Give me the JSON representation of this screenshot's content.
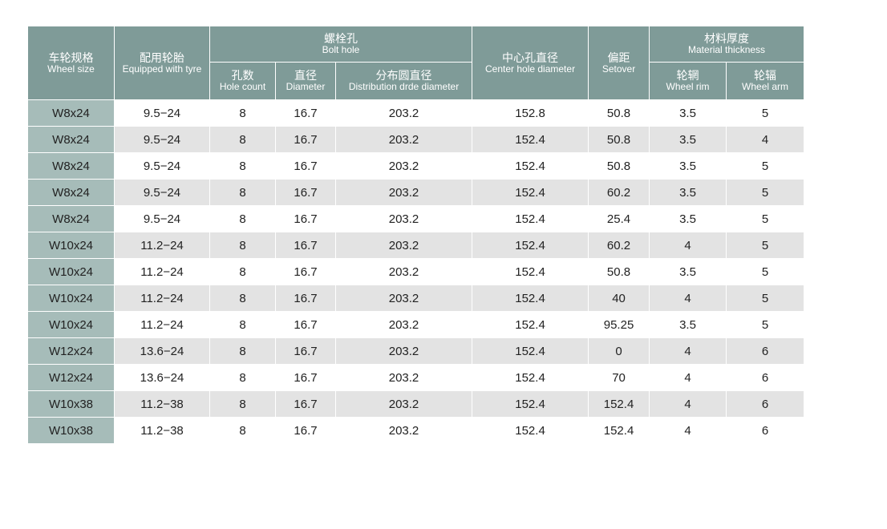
{
  "headers": {
    "wheel_size": {
      "zh": "车轮规格",
      "en": "Wheel size"
    },
    "tyre": {
      "zh": "配用轮胎",
      "en": "Equipped with tyre"
    },
    "bolt_hole": {
      "zh": "螺栓孔",
      "en": "Bolt hole"
    },
    "hole_count": {
      "zh": "孔数",
      "en": "Hole count"
    },
    "diameter": {
      "zh": "直径",
      "en": "Diameter"
    },
    "distribution": {
      "zh": "分布圆直径",
      "en": "Distribution drde diameter"
    },
    "center_hole": {
      "zh": "中心孔直径",
      "en": "Center hole diameter"
    },
    "setover": {
      "zh": "偏距",
      "en": "Setover"
    },
    "material": {
      "zh": "材料厚度",
      "en": "Material thickness"
    },
    "rim": {
      "zh": "轮辋",
      "en": "Wheel rim"
    },
    "arm": {
      "zh": "轮辐",
      "en": "Wheel arm"
    }
  },
  "rows": [
    [
      "W8x24",
      "9.5−24",
      "8",
      "16.7",
      "203.2",
      "152.8",
      "50.8",
      "3.5",
      "5"
    ],
    [
      "W8x24",
      "9.5−24",
      "8",
      "16.7",
      "203.2",
      "152.4",
      "50.8",
      "3.5",
      "4"
    ],
    [
      "W8x24",
      "9.5−24",
      "8",
      "16.7",
      "203.2",
      "152.4",
      "50.8",
      "3.5",
      "5"
    ],
    [
      "W8x24",
      "9.5−24",
      "8",
      "16.7",
      "203.2",
      "152.4",
      "60.2",
      "3.5",
      "5"
    ],
    [
      "W8x24",
      "9.5−24",
      "8",
      "16.7",
      "203.2",
      "152.4",
      "25.4",
      "3.5",
      "5"
    ],
    [
      "W10x24",
      "11.2−24",
      "8",
      "16.7",
      "203.2",
      "152.4",
      "60.2",
      "4",
      "5"
    ],
    [
      "W10x24",
      "11.2−24",
      "8",
      "16.7",
      "203.2",
      "152.4",
      "50.8",
      "3.5",
      "5"
    ],
    [
      "W10x24",
      "11.2−24",
      "8",
      "16.7",
      "203.2",
      "152.4",
      "40",
      "4",
      "5"
    ],
    [
      "W10x24",
      "11.2−24",
      "8",
      "16.7",
      "203.2",
      "152.4",
      "95.25",
      "3.5",
      "5"
    ],
    [
      "W12x24",
      "13.6−24",
      "8",
      "16.7",
      "203.2",
      "152.4",
      "0",
      "4",
      "6"
    ],
    [
      "W12x24",
      "13.6−24",
      "8",
      "16.7",
      "203.2",
      "152.4",
      "70",
      "4",
      "6"
    ],
    [
      "W10x38",
      "11.2−38",
      "8",
      "16.7",
      "203.2",
      "152.4",
      "152.4",
      "4",
      "6"
    ],
    [
      "W10x38",
      "11.2−38",
      "8",
      "16.7",
      "203.2",
      "152.4",
      "152.4",
      "4",
      "6"
    ]
  ],
  "colors": {
    "header": "#7f9b98",
    "size_cell": "#a6bcb9",
    "stripe": "#e3e3e3"
  }
}
